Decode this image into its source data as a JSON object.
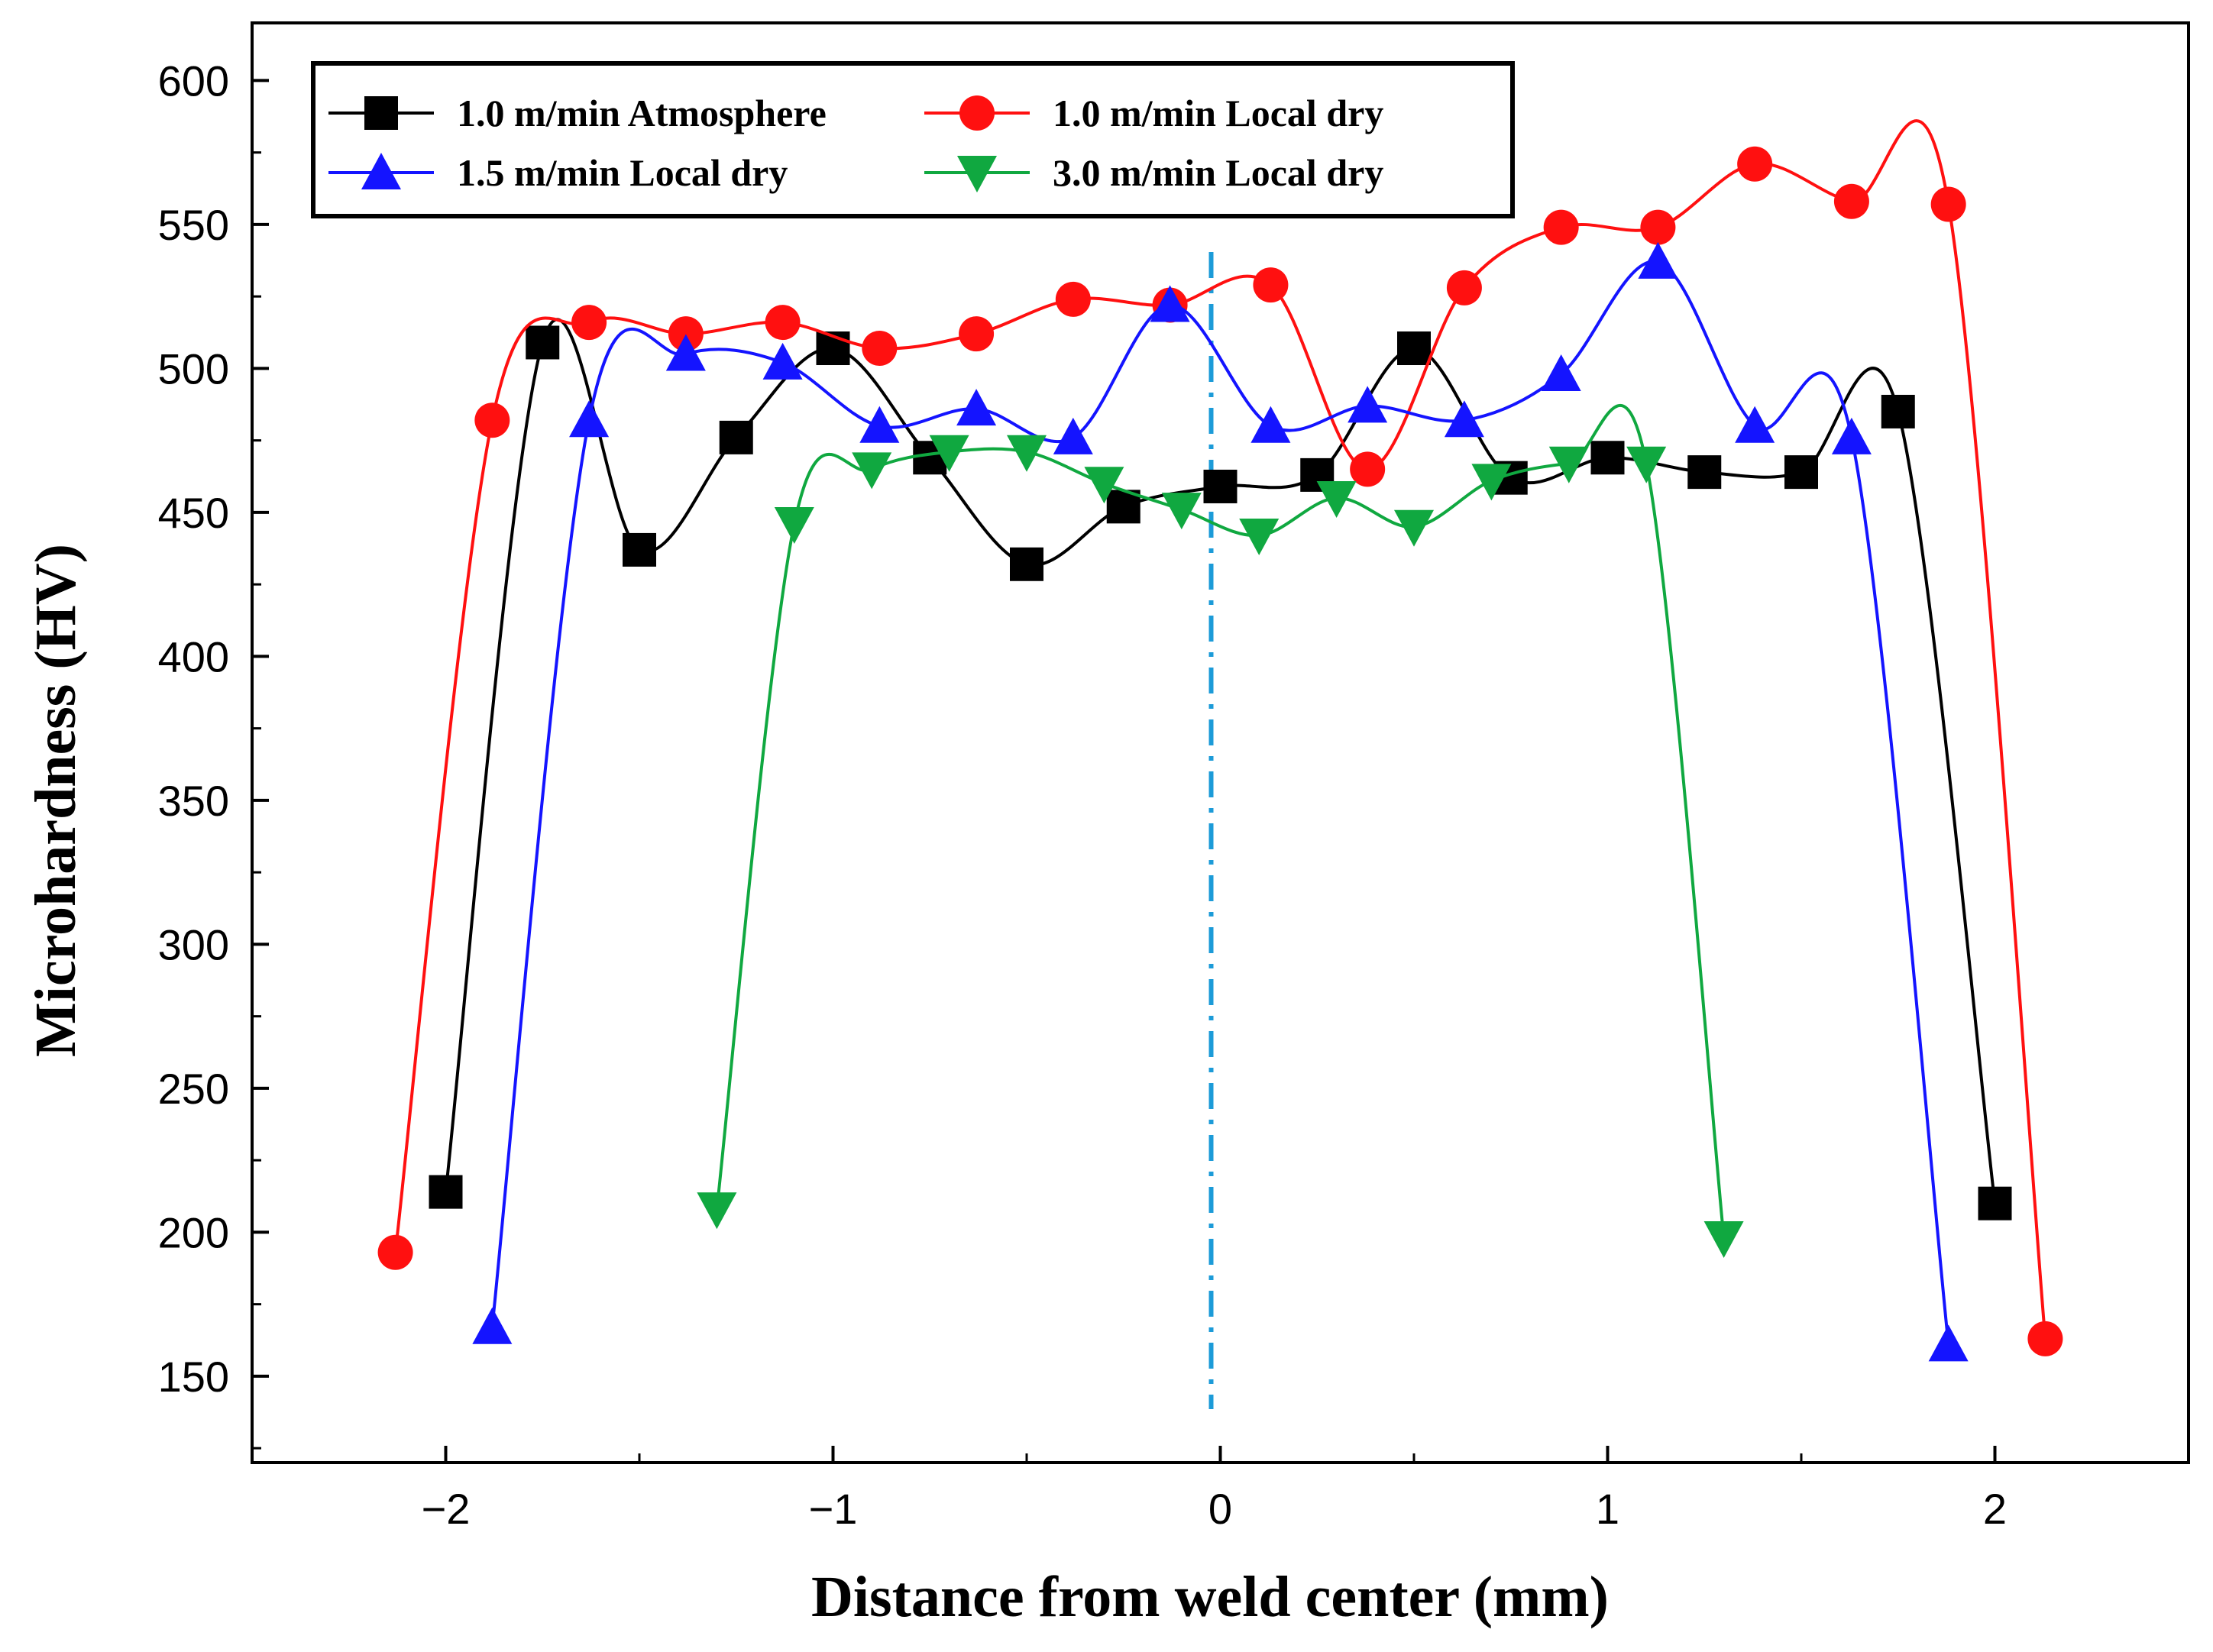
{
  "chart_data": {
    "type": "line",
    "title": "",
    "xlabel": "Distance from weld center (mm)",
    "ylabel": "Microhardness (HV)",
    "xlim": [
      -2.5,
      2.5
    ],
    "ylim": [
      120,
      620
    ],
    "x_ticks": [
      -2,
      -1,
      0,
      1,
      2
    ],
    "x_tick_labels": [
      "−2",
      "−1",
      "0",
      "1",
      "2"
    ],
    "y_ticks": [
      150,
      200,
      250,
      300,
      350,
      400,
      450,
      500,
      550,
      600
    ],
    "y_tick_labels": [
      "150",
      "200",
      "250",
      "300",
      "350",
      "400",
      "450",
      "500",
      "550",
      "600"
    ],
    "grid": false,
    "legend_position": "top-left",
    "center_line_x": 0,
    "series": [
      {
        "name": "1.0 m/min Atmosphere",
        "color": "#000000",
        "marker": "square",
        "x": [
          -2.0,
          -1.75,
          -1.5,
          -1.25,
          -1.0,
          -0.75,
          -0.5,
          -0.25,
          0.0,
          0.25,
          0.5,
          0.75,
          1.0,
          1.25,
          1.5,
          1.75,
          2.0
        ],
        "y": [
          214,
          509,
          437,
          476,
          507,
          469,
          432,
          452,
          459,
          463,
          507,
          462,
          469,
          464,
          464,
          485,
          210
        ]
      },
      {
        "name": "1.0 m/min Local dry",
        "color": "#ff1010",
        "marker": "circle",
        "x": [
          -2.13,
          -1.88,
          -1.63,
          -1.38,
          -1.13,
          -0.88,
          -0.63,
          -0.38,
          -0.13,
          0.13,
          0.38,
          0.63,
          0.88,
          1.13,
          1.38,
          1.63,
          1.88,
          2.13
        ],
        "y": [
          193,
          482,
          516,
          512,
          516,
          507,
          512,
          524,
          522,
          529,
          465,
          528,
          549,
          549,
          571,
          558,
          557,
          163
        ]
      },
      {
        "name": "1.5 m/min Local dry",
        "color": "#1414ff",
        "marker": "triangle-up",
        "x": [
          -1.88,
          -1.63,
          -1.38,
          -1.13,
          -0.88,
          -0.63,
          -0.38,
          -0.13,
          0.13,
          0.38,
          0.63,
          0.88,
          1.13,
          1.38,
          1.63,
          1.88
        ],
        "y": [
          167,
          482,
          505,
          502,
          480,
          486,
          476,
          522,
          480,
          487,
          482,
          498,
          537,
          480,
          476,
          161
        ]
      },
      {
        "name": "3.0 m/min Local dry",
        "color": "#10a840",
        "marker": "triangle-down",
        "x": [
          -1.3,
          -1.1,
          -0.9,
          -0.7,
          -0.5,
          -0.3,
          -0.1,
          0.1,
          0.3,
          0.5,
          0.7,
          0.9,
          1.1,
          1.3
        ],
        "y": [
          208,
          446,
          465,
          471,
          471,
          460,
          451,
          442,
          455,
          445,
          461,
          467,
          467,
          198
        ]
      }
    ]
  }
}
